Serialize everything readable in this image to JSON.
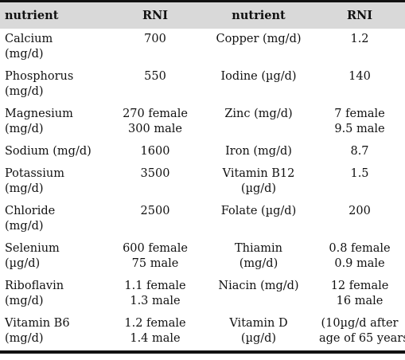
{
  "table": {
    "headers": [
      "nutrient",
      "RNI",
      "nutrient",
      "RNI"
    ],
    "rows": [
      {
        "n1": [
          "Calcium",
          "(mg/d)"
        ],
        "v1": [
          "700"
        ],
        "n2": [
          "Copper (mg/d)"
        ],
        "v2": [
          "1.2"
        ]
      },
      {
        "n1": [
          "Phosphorus",
          "(mg/d)"
        ],
        "v1": [
          "550"
        ],
        "n2": [
          "Iodine (µg/d)"
        ],
        "v2": [
          "140"
        ]
      },
      {
        "n1": [
          "Magnesium",
          "(mg/d)"
        ],
        "v1": [
          "270 female",
          "300 male"
        ],
        "n2": [
          "Zinc (mg/d)"
        ],
        "v2": [
          "7 female",
          "9.5 male"
        ]
      },
      {
        "n1": [
          "Sodium (mg/d)"
        ],
        "v1": [
          "1600"
        ],
        "n2": [
          "Iron (mg/d)"
        ],
        "v2": [
          "8.7"
        ]
      },
      {
        "n1": [
          "Potassium",
          "(mg/d)"
        ],
        "v1": [
          "3500"
        ],
        "n2": [
          "Vitamin B12",
          "(µg/d)"
        ],
        "v2": [
          "1.5"
        ]
      },
      {
        "n1": [
          "Chloride",
          "(mg/d)"
        ],
        "v1": [
          "2500"
        ],
        "n2": [
          "Folate (µg/d)"
        ],
        "v2": [
          "200"
        ]
      },
      {
        "n1": [
          "Selenium",
          "(µg/d)"
        ],
        "v1": [
          "600 female",
          "75 male"
        ],
        "n2": [
          "Thiamin",
          "(mg/d)"
        ],
        "v2": [
          "0.8 female",
          "0.9 male"
        ]
      },
      {
        "n1": [
          "Riboflavin",
          "(mg/d)"
        ],
        "v1": [
          "1.1 female",
          "1.3 male"
        ],
        "n2": [
          "Niacin (mg/d)"
        ],
        "v2": [
          "12 female",
          "16 male"
        ]
      },
      {
        "n1": [
          "Vitamin B6",
          "(mg/d)"
        ],
        "v1": [
          "1.2 female",
          "1.4 male"
        ],
        "n2": [
          "Vitamin D",
          "(µg/d)"
        ],
        "v2": [
          "(10µg/d after",
          "age of 65 years"
        ]
      }
    ]
  }
}
